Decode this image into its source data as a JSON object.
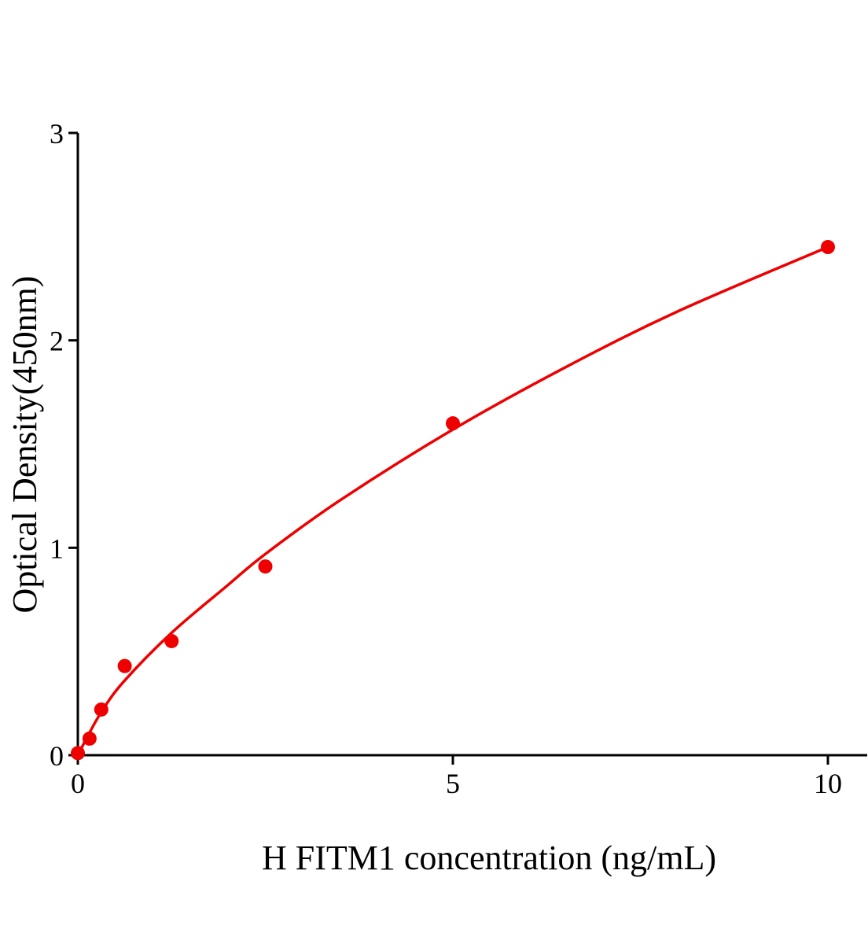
{
  "chart_data": {
    "type": "scatter",
    "title": "",
    "xlabel": "H FITM1 concentration (ng/mL)",
    "ylabel": "Optical Density(450nm)",
    "xlim": [
      0,
      10.5
    ],
    "ylim": [
      0,
      3
    ],
    "xticks": [
      0,
      5,
      10
    ],
    "yticks": [
      0,
      1,
      2,
      3
    ],
    "grid": false,
    "color": "#ee0000",
    "points": [
      {
        "x": 0,
        "y": 0.01
      },
      {
        "x": 0.156,
        "y": 0.08
      },
      {
        "x": 0.3125,
        "y": 0.22
      },
      {
        "x": 0.625,
        "y": 0.43
      },
      {
        "x": 1.25,
        "y": 0.55
      },
      {
        "x": 2.5,
        "y": 0.91
      },
      {
        "x": 5,
        "y": 1.6
      },
      {
        "x": 10,
        "y": 2.45
      }
    ],
    "fit_curve": [
      {
        "x": 0,
        "y": 0
      },
      {
        "x": 0.1,
        "y": 0.07
      },
      {
        "x": 0.3,
        "y": 0.2
      },
      {
        "x": 0.6,
        "y": 0.35
      },
      {
        "x": 1.25,
        "y": 0.59
      },
      {
        "x": 2,
        "y": 0.82
      },
      {
        "x": 2.5,
        "y": 0.97
      },
      {
        "x": 3.5,
        "y": 1.23
      },
      {
        "x": 5,
        "y": 1.57
      },
      {
        "x": 6.5,
        "y": 1.87
      },
      {
        "x": 8,
        "y": 2.14
      },
      {
        "x": 10,
        "y": 2.45
      }
    ]
  }
}
